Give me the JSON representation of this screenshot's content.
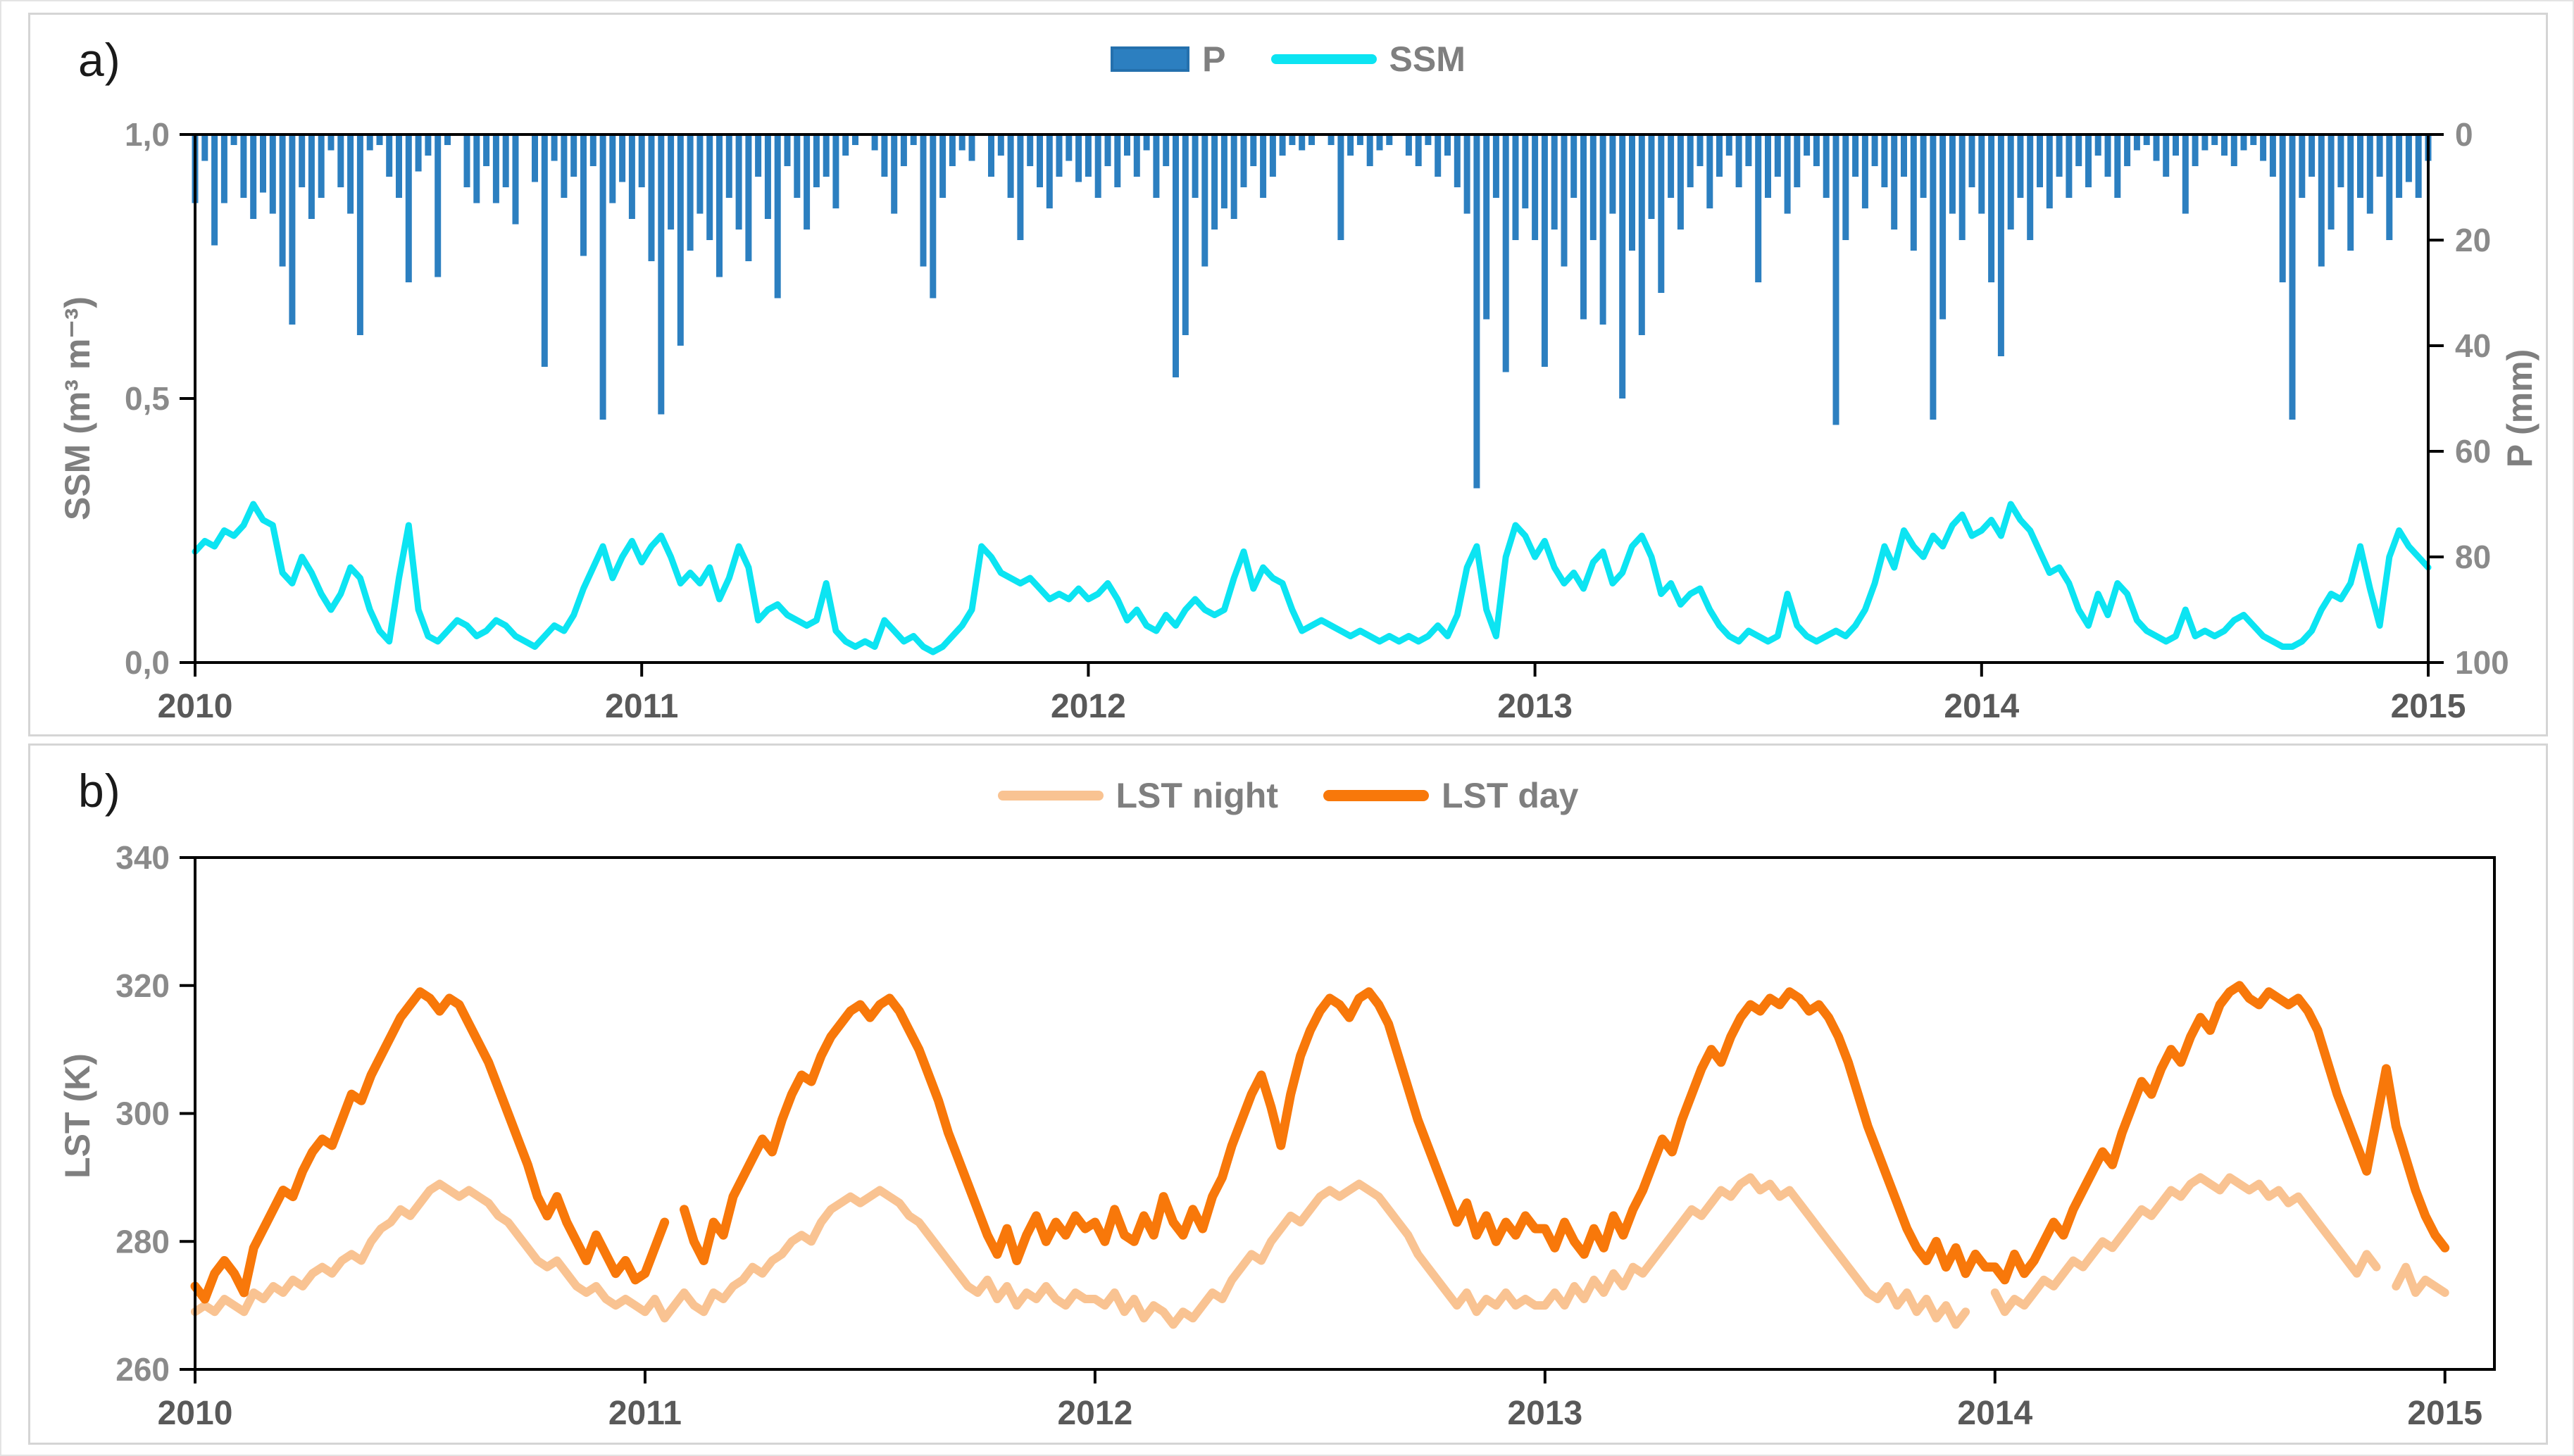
{
  "figure": {
    "panel_a_label": "a)",
    "panel_b_label": "b)"
  },
  "chart_data": [
    {
      "id": "panel-a",
      "type": "bar",
      "title": "",
      "legend_position": "top-center",
      "legend": [
        {
          "label": "P",
          "color": "#2c7fc0",
          "kind": "bar"
        },
        {
          "label": "SSM",
          "color": "#0ce4f2",
          "kind": "line"
        }
      ],
      "y_left": {
        "title": "SSM (m³ m⁻³)",
        "min": 0.0,
        "max": 1.0,
        "tick_values": [
          1.0,
          0.5,
          0.0
        ],
        "tick_labels": [
          "1,0",
          "0,5",
          "0,0"
        ]
      },
      "y_right": {
        "title": "P (mm)",
        "min": 0,
        "max": 100,
        "inverted": true,
        "tick_values": [
          0,
          20,
          40,
          60,
          80,
          100
        ],
        "tick_labels": [
          "0",
          "20",
          "40",
          "60",
          "80",
          "100"
        ]
      },
      "x": {
        "tick_labels": [
          "2010",
          "2011",
          "2012",
          "2013",
          "2014",
          "2015"
        ],
        "tick_values": [
          0,
          1,
          2,
          3,
          4,
          5
        ],
        "domain_years": [
          0,
          5.0
        ]
      },
      "t_start": 0,
      "t_step_years": 0.0217391,
      "series": [
        {
          "name": "P",
          "units": "mm",
          "axis": "right",
          "color": "#2c7fc0",
          "values": [
            13,
            5,
            21,
            13,
            2,
            12,
            16,
            11,
            15,
            25,
            36,
            10,
            16,
            12,
            3,
            10,
            15,
            38,
            3,
            2,
            8,
            12,
            28,
            7,
            4,
            27,
            2,
            0,
            10,
            13,
            6,
            13,
            10,
            17,
            0,
            9,
            44,
            5,
            12,
            8,
            23,
            6,
            54,
            13,
            9,
            16,
            10,
            24,
            53,
            18,
            40,
            22,
            15,
            20,
            27,
            12,
            18,
            24,
            8,
            16,
            31,
            6,
            12,
            18,
            10,
            8,
            14,
            4,
            2,
            0,
            3,
            8,
            15,
            6,
            2,
            25,
            31,
            12,
            6,
            3,
            5,
            0,
            8,
            4,
            12,
            20,
            6,
            10,
            14,
            8,
            5,
            9,
            8,
            12,
            6,
            10,
            4,
            8,
            3,
            12,
            6,
            46,
            38,
            12,
            25,
            18,
            14,
            16,
            10,
            6,
            12,
            8,
            4,
            2,
            3,
            2,
            0,
            2,
            20,
            4,
            2,
            6,
            3,
            2,
            0,
            4,
            6,
            2,
            8,
            4,
            10,
            15,
            67,
            35,
            12,
            45,
            20,
            14,
            20,
            44,
            18,
            25,
            12,
            35,
            20,
            36,
            15,
            50,
            22,
            38,
            16,
            30,
            12,
            18,
            10,
            6,
            14,
            8,
            4,
            10,
            6,
            28,
            12,
            8,
            15,
            10,
            4,
            6,
            12,
            55,
            20,
            8,
            14,
            6,
            10,
            18,
            8,
            22,
            12,
            54,
            35,
            15,
            20,
            10,
            15,
            28,
            42,
            18,
            12,
            20,
            10,
            14,
            8,
            12,
            6,
            10,
            4,
            8,
            12,
            6,
            3,
            2,
            5,
            8,
            4,
            15,
            6,
            3,
            2,
            4,
            6,
            3,
            2,
            5,
            8,
            28,
            54,
            12,
            8,
            25,
            18,
            10,
            22,
            12,
            15,
            8,
            20,
            12,
            9,
            12,
            5
          ]
        },
        {
          "name": "SSM",
          "units": "m³ m⁻³",
          "axis": "left",
          "color": "#0ce4f2",
          "values": [
            0.21,
            0.23,
            0.22,
            0.25,
            0.24,
            0.26,
            0.3,
            0.27,
            0.26,
            0.17,
            0.15,
            0.2,
            0.17,
            0.13,
            0.1,
            0.13,
            0.18,
            0.16,
            0.1,
            0.06,
            0.04,
            0.16,
            0.26,
            0.1,
            0.05,
            0.04,
            0.06,
            0.08,
            0.07,
            0.05,
            0.06,
            0.08,
            0.07,
            0.05,
            0.04,
            0.03,
            0.05,
            0.07,
            0.06,
            0.09,
            0.14,
            0.18,
            0.22,
            0.16,
            0.2,
            0.23,
            0.19,
            0.22,
            0.24,
            0.2,
            0.15,
            0.17,
            0.15,
            0.18,
            0.12,
            0.16,
            0.22,
            0.18,
            0.08,
            0.1,
            0.11,
            0.09,
            0.08,
            0.07,
            0.08,
            0.15,
            0.06,
            0.04,
            0.03,
            0.04,
            0.03,
            0.08,
            0.06,
            0.04,
            0.05,
            0.03,
            0.02,
            0.03,
            0.05,
            0.07,
            0.1,
            0.22,
            0.2,
            0.17,
            0.16,
            0.15,
            0.16,
            0.14,
            0.12,
            0.13,
            0.12,
            0.14,
            0.12,
            0.13,
            0.15,
            0.12,
            0.08,
            0.1,
            0.07,
            0.06,
            0.09,
            0.07,
            0.1,
            0.12,
            0.1,
            0.09,
            0.1,
            0.16,
            0.21,
            0.14,
            0.18,
            0.16,
            0.15,
            0.1,
            0.06,
            0.07,
            0.08,
            0.07,
            0.06,
            0.05,
            0.06,
            0.05,
            0.04,
            0.05,
            0.04,
            0.05,
            0.04,
            0.05,
            0.07,
            0.05,
            0.09,
            0.18,
            0.22,
            0.1,
            0.05,
            0.2,
            0.26,
            0.24,
            0.2,
            0.23,
            0.18,
            0.15,
            0.17,
            0.14,
            0.19,
            0.21,
            0.15,
            0.17,
            0.22,
            0.24,
            0.2,
            0.13,
            0.15,
            0.11,
            0.13,
            0.14,
            0.1,
            0.07,
            0.05,
            0.04,
            0.06,
            0.05,
            0.04,
            0.05,
            0.13,
            0.07,
            0.05,
            0.04,
            0.05,
            0.06,
            0.05,
            0.07,
            0.1,
            0.15,
            0.22,
            0.18,
            0.25,
            0.22,
            0.2,
            0.24,
            0.22,
            0.26,
            0.28,
            0.24,
            0.25,
            0.27,
            0.24,
            0.3,
            0.27,
            0.25,
            0.21,
            0.17,
            0.18,
            0.15,
            0.1,
            0.07,
            0.13,
            0.09,
            0.15,
            0.13,
            0.08,
            0.06,
            0.05,
            0.04,
            0.05,
            0.1,
            0.05,
            0.06,
            0.05,
            0.06,
            0.08,
            0.09,
            0.07,
            0.05,
            0.04,
            0.03,
            0.03,
            0.04,
            0.06,
            0.1,
            0.13,
            0.12,
            0.15,
            0.22,
            0.14,
            0.07,
            0.2,
            0.25,
            0.22,
            0.2,
            0.18
          ]
        }
      ]
    },
    {
      "id": "panel-b",
      "type": "line",
      "title": "",
      "legend_position": "top-center",
      "legend": [
        {
          "label": "LST night",
          "color": "#f9c392",
          "kind": "line"
        },
        {
          "label": "LST day",
          "color": "#f8780a",
          "kind": "line"
        }
      ],
      "y_left": {
        "title": "LST (K)",
        "min": 260,
        "max": 340,
        "tick_values": [
          340,
          320,
          300,
          280,
          260
        ],
        "tick_labels": [
          "340",
          "320",
          "300",
          "280",
          "260"
        ]
      },
      "x": {
        "tick_labels": [
          "2010",
          "2011",
          "2012",
          "2013",
          "2014",
          "2015"
        ],
        "tick_values": [
          0,
          1,
          2,
          3,
          4,
          5
        ],
        "domain_years": [
          0,
          5.11
        ]
      },
      "t_start": 0,
      "t_step_years": 0.0217391,
      "series": [
        {
          "name": "LST day",
          "units": "K",
          "axis": "left",
          "color": "#f8780a",
          "values": [
            273,
            271,
            275,
            277,
            275,
            272,
            279,
            282,
            285,
            288,
            287,
            291,
            294,
            296,
            295,
            299,
            303,
            302,
            306,
            309,
            312,
            315,
            317,
            319,
            318,
            316,
            318,
            317,
            314,
            311,
            308,
            304,
            300,
            296,
            292,
            287,
            284,
            287,
            283,
            280,
            277,
            281,
            278,
            275,
            277,
            274,
            275,
            279,
            283,
            null,
            285,
            280,
            277,
            283,
            281,
            287,
            290,
            293,
            296,
            294,
            299,
            303,
            306,
            305,
            309,
            312,
            314,
            316,
            317,
            315,
            317,
            318,
            316,
            313,
            310,
            306,
            302,
            297,
            293,
            289,
            285,
            281,
            278,
            282,
            277,
            281,
            284,
            280,
            283,
            281,
            284,
            282,
            283,
            280,
            285,
            281,
            280,
            284,
            281,
            287,
            283,
            281,
            285,
            282,
            287,
            290,
            295,
            299,
            303,
            306,
            301,
            295,
            303,
            309,
            313,
            316,
            318,
            317,
            315,
            318,
            319,
            317,
            314,
            309,
            304,
            299,
            295,
            291,
            287,
            283,
            286,
            281,
            284,
            280,
            283,
            281,
            284,
            282,
            282,
            279,
            283,
            280,
            278,
            282,
            279,
            284,
            281,
            285,
            288,
            292,
            296,
            294,
            299,
            303,
            307,
            310,
            308,
            312,
            315,
            317,
            316,
            318,
            317,
            319,
            318,
            316,
            317,
            315,
            312,
            308,
            303,
            298,
            294,
            290,
            286,
            282,
            279,
            277,
            280,
            276,
            279,
            275,
            278,
            276,
            276,
            274,
            278,
            275,
            277,
            280,
            283,
            281,
            285,
            288,
            291,
            294,
            292,
            297,
            301,
            305,
            303,
            307,
            310,
            308,
            312,
            315,
            313,
            317,
            319,
            320,
            318,
            317,
            319,
            318,
            317,
            318,
            316,
            313,
            308,
            303,
            299,
            295,
            291,
            299,
            307,
            298,
            293,
            288,
            284,
            281,
            279
          ]
        },
        {
          "name": "LST night",
          "units": "K",
          "axis": "left",
          "color": "#f9c392",
          "values": [
            269,
            270,
            269,
            271,
            270,
            269,
            272,
            271,
            273,
            272,
            274,
            273,
            275,
            276,
            275,
            277,
            278,
            277,
            280,
            282,
            283,
            285,
            284,
            286,
            288,
            289,
            288,
            287,
            288,
            287,
            286,
            284,
            283,
            281,
            279,
            277,
            276,
            277,
            275,
            273,
            272,
            273,
            271,
            270,
            271,
            270,
            269,
            271,
            268,
            270,
            272,
            270,
            269,
            272,
            271,
            273,
            274,
            276,
            275,
            277,
            278,
            280,
            281,
            280,
            283,
            285,
            286,
            287,
            286,
            287,
            288,
            287,
            286,
            284,
            283,
            281,
            279,
            277,
            275,
            273,
            272,
            274,
            271,
            273,
            270,
            272,
            271,
            273,
            271,
            270,
            272,
            271,
            271,
            270,
            272,
            269,
            271,
            268,
            270,
            269,
            267,
            269,
            268,
            270,
            272,
            271,
            274,
            276,
            278,
            277,
            280,
            282,
            284,
            283,
            285,
            287,
            288,
            287,
            288,
            289,
            288,
            287,
            285,
            283,
            281,
            278,
            276,
            274,
            272,
            270,
            272,
            269,
            271,
            270,
            272,
            270,
            271,
            270,
            270,
            272,
            270,
            273,
            271,
            274,
            272,
            275,
            273,
            276,
            275,
            277,
            279,
            281,
            283,
            285,
            284,
            286,
            288,
            287,
            289,
            290,
            288,
            289,
            287,
            288,
            286,
            284,
            282,
            280,
            278,
            276,
            274,
            272,
            271,
            273,
            270,
            272,
            269,
            271,
            268,
            270,
            267,
            269,
            null,
            null,
            272,
            269,
            271,
            270,
            272,
            274,
            273,
            275,
            277,
            276,
            278,
            280,
            279,
            281,
            283,
            285,
            284,
            286,
            288,
            287,
            289,
            290,
            289,
            288,
            290,
            289,
            288,
            289,
            287,
            288,
            286,
            287,
            285,
            283,
            281,
            279,
            277,
            275,
            278,
            276,
            null,
            273,
            276,
            272,
            274,
            273,
            272
          ]
        }
      ]
    }
  ],
  "style": {
    "tick_label_color": "#8a8a8a",
    "year_label_color": "#595959",
    "axis_color": "#000000",
    "legend_text_color": "#7f7f7f"
  }
}
